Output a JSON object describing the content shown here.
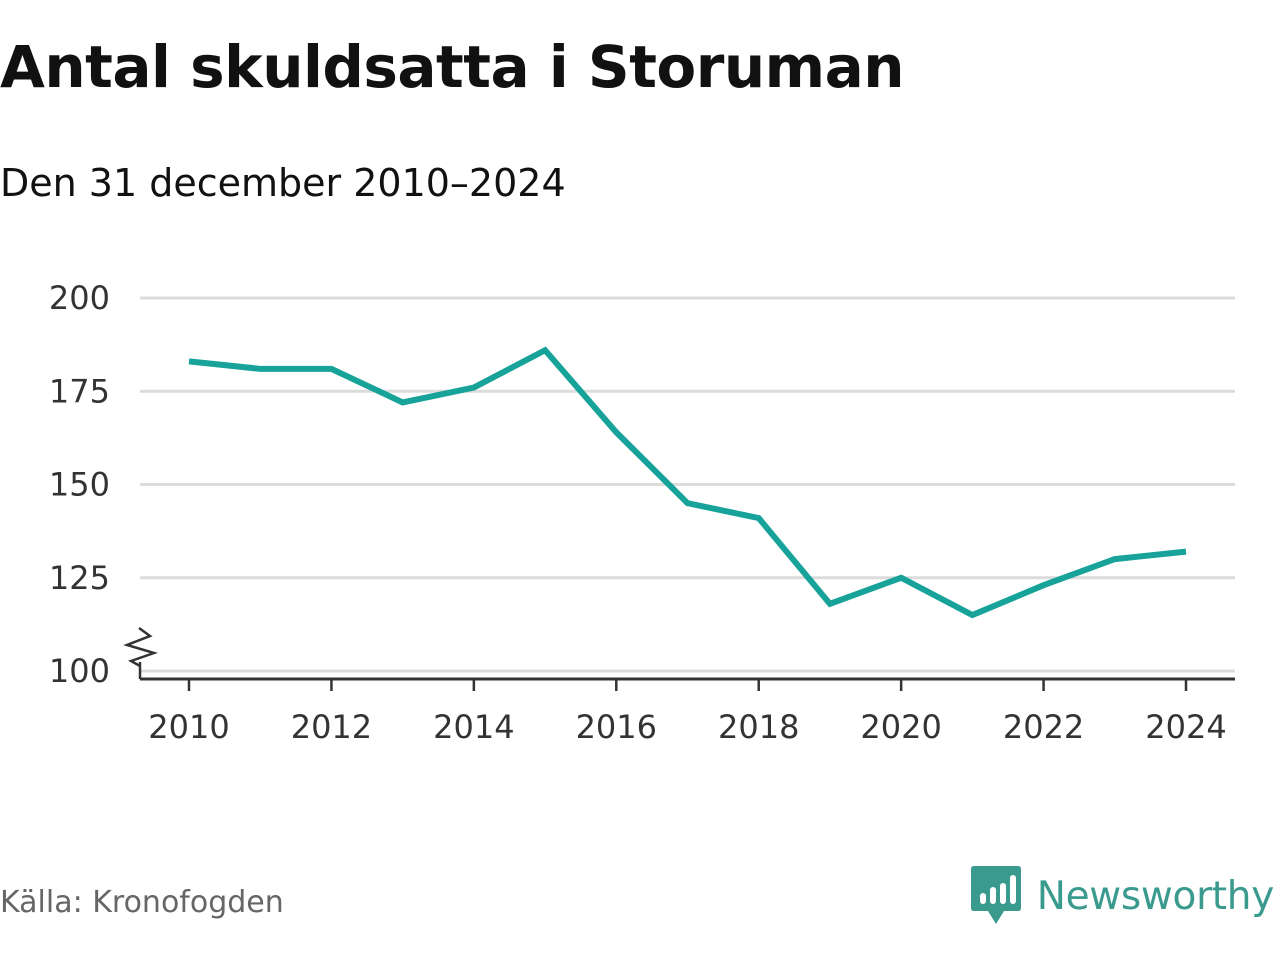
{
  "title": "Antal skuldsatta i Storuman",
  "subtitle": "Den 31 december 2010–2024",
  "source": "Källa: Kronofogden",
  "brand": {
    "name": "Newsworthy",
    "icon": "newsworthy-logo-icon",
    "color": "#3a9a8e"
  },
  "chart_data": {
    "type": "line",
    "title": "Antal skuldsatta i Storuman",
    "subtitle": "Den 31 december 2010–2024",
    "xlabel": "",
    "ylabel": "",
    "x": [
      2010,
      2011,
      2012,
      2013,
      2014,
      2015,
      2016,
      2017,
      2018,
      2019,
      2020,
      2021,
      2022,
      2023,
      2024
    ],
    "series": [
      {
        "values": [
          183,
          181,
          181,
          172,
          176,
          186,
          164,
          145,
          141,
          118,
          125,
          115,
          123,
          130,
          132
        ],
        "color": "#17a39a"
      }
    ],
    "x_ticks": [
      "2010",
      "2012",
      "2014",
      "2016",
      "2018",
      "2020",
      "2022",
      "2024"
    ],
    "y_ticks": [
      "100",
      "125",
      "150",
      "175",
      "200"
    ],
    "ylim": [
      100,
      200
    ],
    "y_axis_break": true,
    "grid": true,
    "legend": "none"
  }
}
